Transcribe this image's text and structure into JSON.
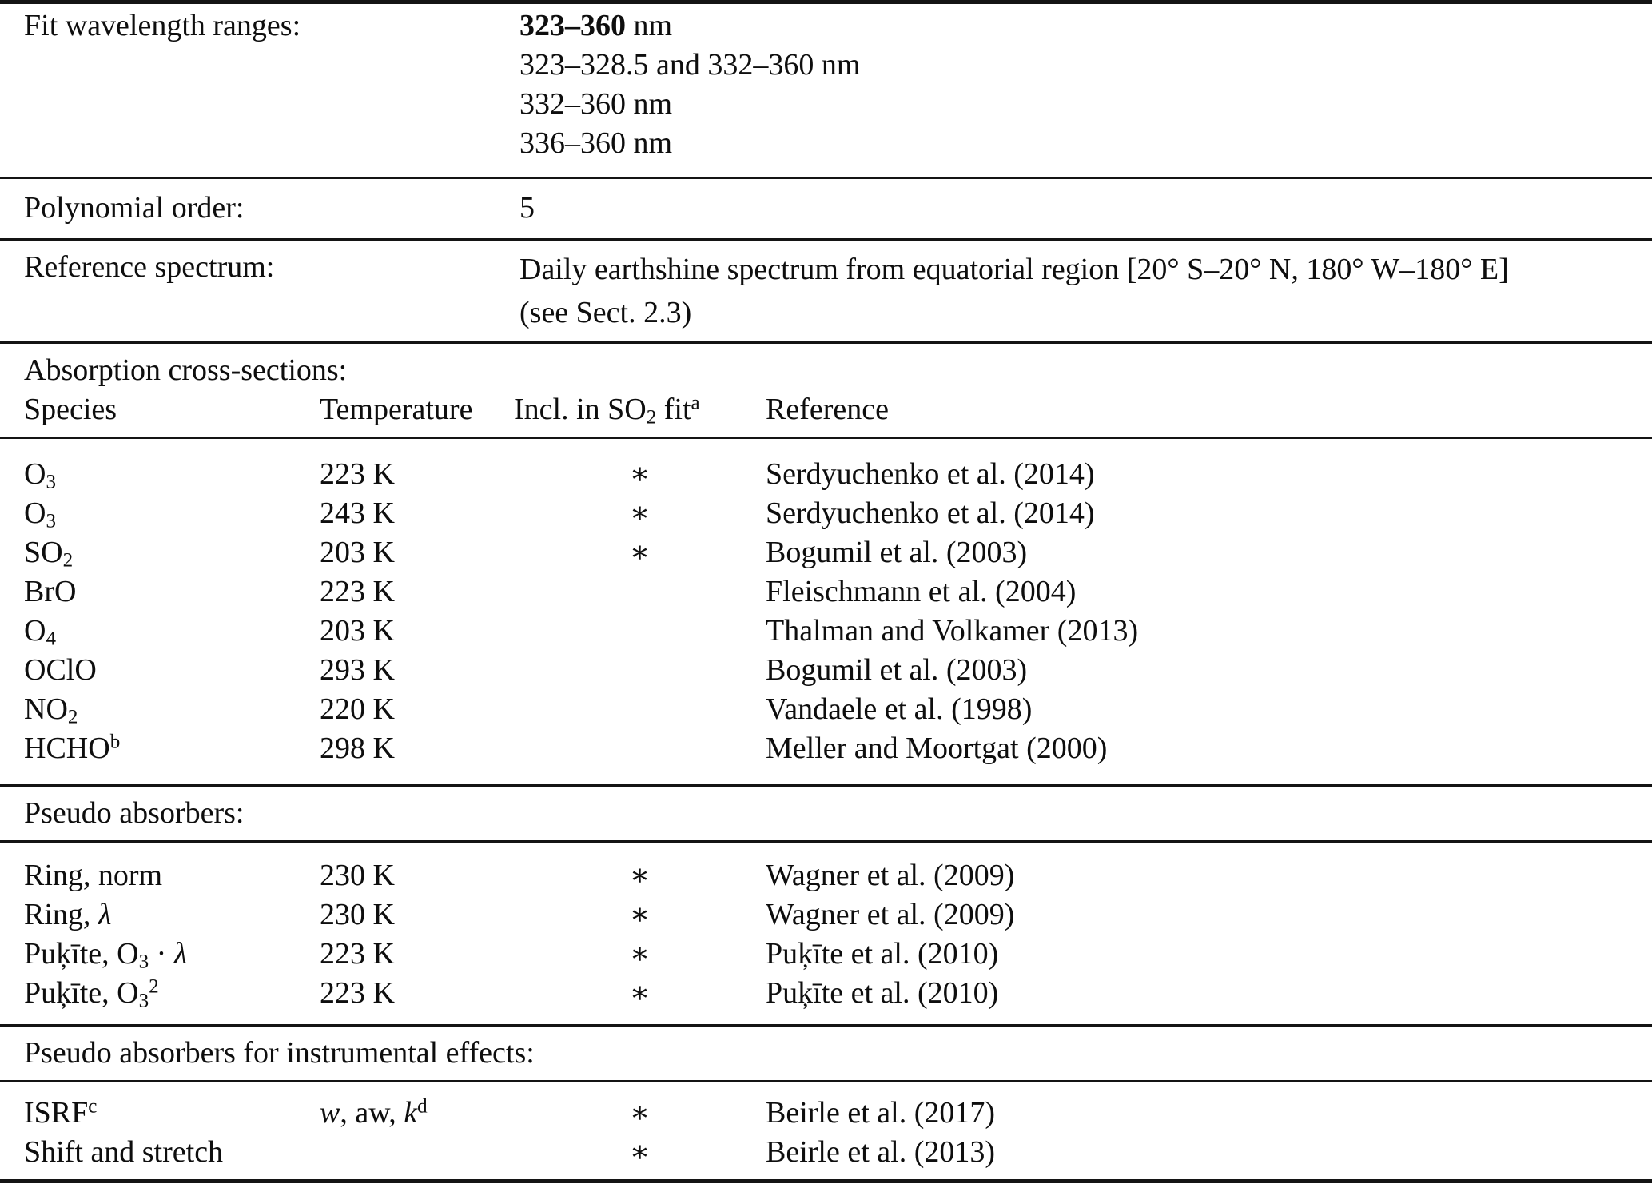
{
  "colors": {
    "text": "#0e0e0e",
    "background": "#ffffff",
    "rule": "#141414"
  },
  "fit_ranges": {
    "label": "Fit wavelength ranges:",
    "values": [
      "**323–360** nm",
      "323–328.5 and 332–360 nm",
      "332–360 nm",
      "336–360 nm"
    ]
  },
  "polynomial": {
    "label": "Polynomial order:",
    "value": "5"
  },
  "reference_spectrum": {
    "label": "Reference spectrum:",
    "lines": [
      "Daily earthshine spectrum from equatorial region [20° S–20° N, 180° W–180° E]",
      "(see Sect. 2.3)"
    ]
  },
  "cross_sections": {
    "title": "Absorption cross-sections:",
    "columns": {
      "species": "Species",
      "temperature": "Temperature",
      "included": "Incl. in SO_{2} fit^{a}",
      "reference": "Reference"
    },
    "rows": [
      {
        "name": "O_{3}",
        "temperature": "223 K",
        "included": "∗",
        "reference": "Serdyuchenko et al. (2014)"
      },
      {
        "name": "O_{3}",
        "temperature": "243 K",
        "included": "∗",
        "reference": "Serdyuchenko et al. (2014)"
      },
      {
        "name": "SO_{2}",
        "temperature": "203 K",
        "included": "∗",
        "reference": "Bogumil et al. (2003)"
      },
      {
        "name": "BrO",
        "temperature": "223 K",
        "included": "",
        "reference": "Fleischmann et al. (2004)"
      },
      {
        "name": "O_{4}",
        "temperature": "203 K",
        "included": "",
        "reference": "Thalman and Volkamer (2013)"
      },
      {
        "name": "OClO",
        "temperature": "293 K",
        "included": "",
        "reference": "Bogumil et al. (2003)"
      },
      {
        "name": "NO_{2}",
        "temperature": "220 K",
        "included": "",
        "reference": "Vandaele et al. (1998)"
      },
      {
        "name": "HCHO^{b}",
        "temperature": "298 K",
        "included": "",
        "reference": "Meller and Moortgat (2000)"
      }
    ]
  },
  "pseudo_absorbers": {
    "title": "Pseudo absorbers:",
    "rows": [
      {
        "name": "Ring, norm",
        "temperature": "230 K",
        "included": "∗",
        "reference": "Wagner et al. (2009)"
      },
      {
        "name": "Ring, *λ*",
        "temperature": "230 K",
        "included": "∗",
        "reference": "Wagner et al. (2009)"
      },
      {
        "name": "Puķīte, O_{3} · *λ*",
        "temperature": "223 K",
        "included": "∗",
        "reference": "Puķīte et al. (2010)"
      },
      {
        "name": "Puķīte, O_{3}^{2}",
        "temperature": "223 K",
        "included": "∗",
        "reference": "Puķīte et al. (2010)"
      }
    ]
  },
  "instrumental": {
    "title": "Pseudo absorbers for instrumental effects:",
    "rows": [
      {
        "name": "ISRF^{c}",
        "temperature": "*w*, aw, *k*^{d}",
        "included": "∗",
        "reference": "Beirle et al. (2017)"
      },
      {
        "name": "Shift and stretch",
        "temperature": "",
        "included": "∗",
        "reference": "Beirle et al. (2013)"
      }
    ]
  }
}
